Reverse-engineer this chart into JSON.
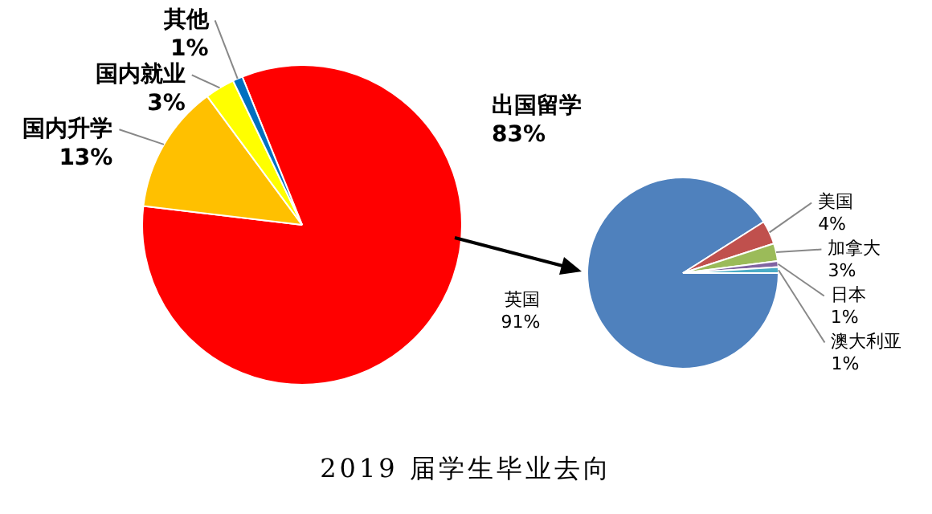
{
  "chart_data": [
    {
      "type": "pie",
      "title": "2019 届学生毕业去向",
      "categories": [
        "出国留学",
        "国内升学",
        "国内就业",
        "其他"
      ],
      "values": [
        83,
        13,
        3,
        1
      ],
      "value_labels": [
        "83%",
        "13%",
        "3%",
        "1%"
      ],
      "colors": [
        "#ff0000",
        "#ffc000",
        "#ffff00",
        "#0070c0"
      ]
    },
    {
      "type": "pie",
      "categories": [
        "英国",
        "美国",
        "加拿大",
        "日本",
        "澳大利亚"
      ],
      "values": [
        91,
        4,
        3,
        1,
        1
      ],
      "value_labels": [
        "91%",
        "4%",
        "3%",
        "1%",
        "1%"
      ],
      "colors": [
        "#4f81bd",
        "#c0504d",
        "#9bbb59",
        "#8064a2",
        "#4bacc6"
      ]
    }
  ]
}
